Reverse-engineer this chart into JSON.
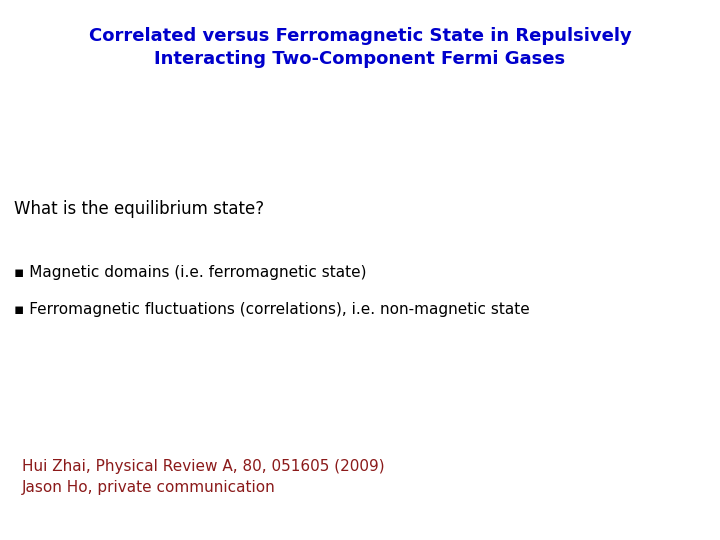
{
  "title_line1": "Correlated versus Ferromagnetic State in Repulsively",
  "title_line2": "Interacting Two-Component Fermi Gases",
  "title_color": "#0000CC",
  "title_fontsize": 13,
  "title_fontfamily": "DejaVu Sans",
  "question": "What is the equilibrium state?",
  "question_color": "#000000",
  "question_fontsize": 12,
  "bullet_symbol": "▪",
  "bullet1": " Magnetic domains (i.e. ferromagnetic state)",
  "bullet2": " Ferromagnetic fluctuations (correlations), i.e. non-magnetic state",
  "bullet_color": "#000000",
  "bullet_fontsize": 11,
  "ref1": "Hui Zhai, Physical Review A, 80, 051605 (2009)",
  "ref2": "Jason Ho, private communication",
  "ref_color": "#8B1A1A",
  "ref_fontsize": 11,
  "background_color": "#FFFFFF"
}
